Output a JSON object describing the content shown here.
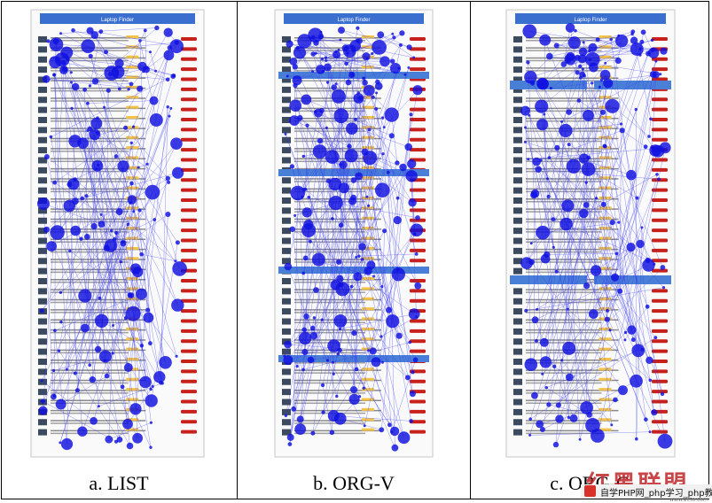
{
  "panels": [
    {
      "caption": "a. LIST",
      "page_title": "Laptop Finder",
      "variant": "list"
    },
    {
      "caption": "b. ORG-V",
      "page_title": "Laptop Finder",
      "variant": "org-v"
    },
    {
      "caption": "c. ORG-G",
      "page_title": "Laptop Finder",
      "variant": "org-g"
    }
  ],
  "watermark": {
    "brand_glyphs": "红黑联盟",
    "site_text": "自学PHP网_php学习_php教",
    "url": "www.2cto.com"
  },
  "colors": {
    "fixation": "#1010e0",
    "scanpath": "#3a3aee",
    "header": "#3a6fd0",
    "category_bar": "#4a7fd8",
    "button": "#c8201a",
    "badge": "#f2c24a"
  }
}
